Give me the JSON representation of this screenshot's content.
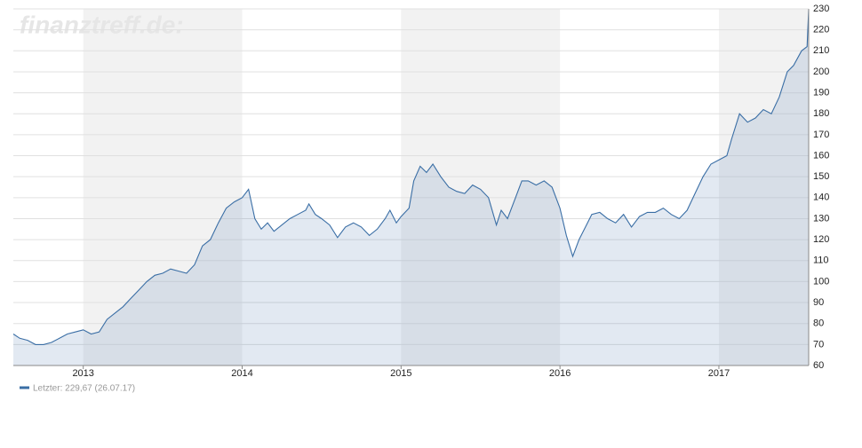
{
  "chart_data": {
    "type": "line",
    "watermark": "finanztreff.de:",
    "x": [
      2012.56,
      2012.6,
      2012.65,
      2012.7,
      2012.75,
      2012.8,
      2012.85,
      2012.9,
      2012.95,
      2013.0,
      2013.05,
      2013.1,
      2013.15,
      2013.2,
      2013.25,
      2013.3,
      2013.35,
      2013.4,
      2013.45,
      2013.5,
      2013.55,
      2013.6,
      2013.65,
      2013.7,
      2013.75,
      2013.8,
      2013.85,
      2013.9,
      2013.95,
      2014.0,
      2014.04,
      2014.08,
      2014.12,
      2014.16,
      2014.2,
      2014.25,
      2014.3,
      2014.35,
      2014.4,
      2014.42,
      2014.46,
      2014.5,
      2014.55,
      2014.6,
      2014.65,
      2014.7,
      2014.75,
      2014.8,
      2014.85,
      2014.9,
      2014.93,
      2014.97,
      2015.0,
      2015.05,
      2015.08,
      2015.12,
      2015.16,
      2015.2,
      2015.25,
      2015.3,
      2015.35,
      2015.4,
      2015.45,
      2015.5,
      2015.55,
      2015.6,
      2015.63,
      2015.67,
      2015.72,
      2015.76,
      2015.8,
      2015.85,
      2015.9,
      2015.95,
      2016.0,
      2016.04,
      2016.08,
      2016.12,
      2016.16,
      2016.2,
      2016.25,
      2016.3,
      2016.35,
      2016.4,
      2016.45,
      2016.5,
      2016.55,
      2016.6,
      2016.65,
      2016.7,
      2016.75,
      2016.8,
      2016.85,
      2016.9,
      2016.95,
      2017.0,
      2017.05,
      2017.08,
      2017.13,
      2017.18,
      2017.23,
      2017.28,
      2017.33,
      2017.38,
      2017.43,
      2017.47,
      2017.52,
      2017.555,
      2017.565
    ],
    "series": [
      {
        "name": "Letzter: 229,67 (26.07.17)",
        "color": "#3a6ea5",
        "values": [
          75,
          73,
          72,
          70,
          70,
          71,
          73,
          75,
          76,
          77,
          75,
          76,
          82,
          85,
          88,
          92,
          96,
          100,
          103,
          104,
          106,
          105,
          104,
          108,
          117,
          120,
          128,
          135,
          138,
          140,
          144,
          130,
          125,
          128,
          124,
          127,
          130,
          132,
          134,
          137,
          132,
          130,
          127,
          121,
          126,
          128,
          126,
          122,
          125,
          130,
          134,
          128,
          131,
          135,
          148,
          155,
          152,
          156,
          150,
          145,
          143,
          142,
          146,
          144,
          140,
          127,
          134,
          130,
          140,
          148,
          148,
          146,
          148,
          145,
          135,
          122,
          112,
          120,
          126,
          132,
          133,
          130,
          128,
          132,
          126,
          131,
          133,
          133,
          135,
          132,
          130,
          134,
          142,
          150,
          156,
          158,
          160,
          168,
          180,
          176,
          178,
          182,
          180,
          188,
          200,
          203,
          210,
          212,
          229.67
        ]
      }
    ],
    "xlim": [
      2012.56,
      2017.565
    ],
    "xticks": [
      2013,
      2014,
      2015,
      2016,
      2017
    ],
    "ylim": [
      60,
      230
    ],
    "yticks": [
      60,
      70,
      80,
      90,
      100,
      110,
      120,
      130,
      140,
      150,
      160,
      170,
      180,
      190,
      200,
      210,
      220,
      230
    ],
    "grid": true
  }
}
